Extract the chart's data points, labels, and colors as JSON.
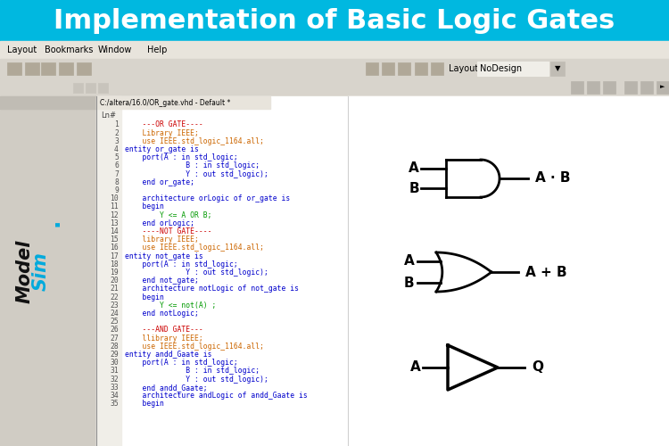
{
  "title": "Implementation of Basic Logic Gates",
  "title_bg": "#00B8E0",
  "title_color": "#FFFFFF",
  "title_fontsize": 22,
  "menu_bg": "#E8E4DC",
  "toolbar_bg": "#D8D4CC",
  "code_bg": "#FFFFFF",
  "ln_col_bg": "#F0EEE8",
  "left_panel_bg": "#D0CCC4",
  "main_bg": "#C4C0B8",
  "gate_color": "#000000",
  "gate_lw": 2.0,
  "code_lines": [
    "    ---OR GATE----",
    "    Library IEEE;",
    "    use IEEE.std_logic_1164.all;",
    "entity or_gate is",
    "    port(A : in std_logic;",
    "              B : in std_logic;",
    "              Y : out std_logic);",
    "    end or_gate;",
    "",
    "    architecture orLogic of or_gate is",
    "    begin",
    "        Y <= A OR B;",
    "    end orLogic;",
    "    ----NOT GATE----",
    "    library IEEE;",
    "    use IEEE.std_logic_1164.all;",
    "entity not_gate is",
    "    port(A : in std_logic;",
    "              Y : out std_logic);",
    "    end not_gate;",
    "    architecture notLogic of not_gate is",
    "    begin",
    "        Y <= not(A) ;",
    "    end notLogic;",
    "",
    "    ---AND GATE---",
    "    llibrary IEEE;",
    "    use IEEE.std_logic_1164.all;",
    "entity andd_Gaate is",
    "    port(A : in std_logic;",
    "              B : in std_logic;",
    "              Y : out std_logic);",
    "    end andd_Gaate;",
    "    architecture andLogic of andd_Gaate is",
    "    begin"
  ],
  "code_colors": [
    "#CC0000",
    "#CC6600",
    "#CC6600",
    "#0000CC",
    "#0000CC",
    "#0000CC",
    "#0000CC",
    "#0000CC",
    "#000000",
    "#0000CC",
    "#0000CC",
    "#009900",
    "#0000CC",
    "#CC0000",
    "#CC6600",
    "#CC6600",
    "#0000CC",
    "#0000CC",
    "#0000CC",
    "#0000CC",
    "#0000CC",
    "#0000CC",
    "#009900",
    "#0000CC",
    "#000000",
    "#CC0000",
    "#CC6600",
    "#CC6600",
    "#0000CC",
    "#0000CC",
    "#0000CC",
    "#0000CC",
    "#0000CC",
    "#0000CC",
    "#0000CC"
  ]
}
